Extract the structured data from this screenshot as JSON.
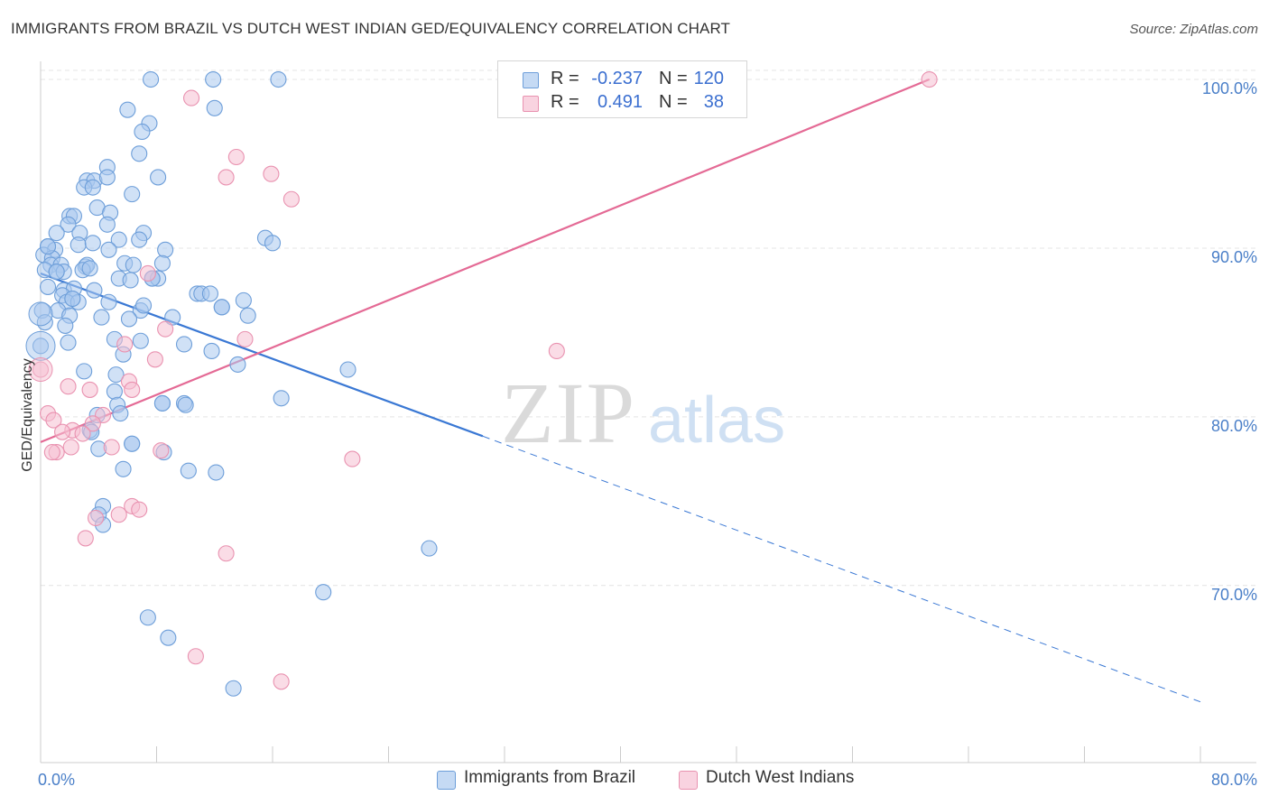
{
  "title": "IMMIGRANTS FROM BRAZIL VS DUTCH WEST INDIAN GED/EQUIVALENCY CORRELATION CHART",
  "source": "Source: ZipAtlas.com",
  "watermark": {
    "zip": "ZIP",
    "atlas": "atlas"
  },
  "colors": {
    "blue_fill": "#a9c8ee",
    "blue_stroke": "#6d9ed9",
    "blue_line": "#3a78d4",
    "pink_fill": "#f6bfd1",
    "pink_stroke": "#e992b0",
    "pink_line": "#e46a95",
    "grid": "#e4e4e4",
    "tick_label": "#4a7fc8"
  },
  "legend": [
    {
      "r_label": "R =",
      "r_value": "-0.237",
      "n_label": "N =",
      "n_value": "120"
    },
    {
      "r_label": "R =",
      "r_value": "0.491",
      "n_label": "N =",
      "n_value": "38"
    }
  ],
  "chart_data": {
    "type": "scatter",
    "title": "IMMIGRANTS FROM BRAZIL VS DUTCH WEST INDIAN GED/EQUIVALENCY CORRELATION CHART",
    "xlabel": "",
    "ylabel": "GED/Equivalency",
    "xlim": [
      0,
      80
    ],
    "ylim": [
      59.5,
      101.5
    ],
    "x_tick_labels": [
      "0.0%",
      "80.0%"
    ],
    "y_ticks": [
      70,
      80,
      90,
      100
    ],
    "y_tick_labels": [
      "70.0%",
      "80.0%",
      "90.0%",
      "100.0%"
    ],
    "legend_labels": [
      "Immigrants from Brazil",
      "Dutch West Indians"
    ],
    "series": [
      {
        "name": "Immigrants from Brazil",
        "color": "#a9c8ee",
        "trend": {
          "x": [
            0,
            30.5
          ],
          "y": [
            88.5,
            78.85
          ],
          "dash_to": [
            80,
            63.1
          ]
        },
        "points": [
          [
            7.6,
            100
          ],
          [
            11.9,
            100
          ],
          [
            16.4,
            100
          ],
          [
            6.0,
            98.2
          ],
          [
            12.0,
            98.3
          ],
          [
            7.5,
            97.4
          ],
          [
            7.0,
            96.9
          ],
          [
            6.8,
            95.6
          ],
          [
            4.6,
            94.8
          ],
          [
            8.1,
            94.2
          ],
          [
            3.2,
            94.0
          ],
          [
            3.7,
            94.0
          ],
          [
            4.6,
            94.2
          ],
          [
            3.0,
            93.6
          ],
          [
            3.6,
            93.6
          ],
          [
            6.3,
            93.2
          ],
          [
            3.9,
            92.4
          ],
          [
            4.8,
            92.1
          ],
          [
            2.0,
            91.9
          ],
          [
            2.3,
            91.9
          ],
          [
            1.9,
            91.4
          ],
          [
            4.6,
            91.4
          ],
          [
            1.1,
            90.9
          ],
          [
            2.7,
            90.9
          ],
          [
            7.1,
            90.9
          ],
          [
            5.4,
            90.5
          ],
          [
            6.8,
            90.5
          ],
          [
            15.5,
            90.6
          ],
          [
            16.0,
            90.3
          ],
          [
            0.5,
            90.1
          ],
          [
            1.0,
            89.9
          ],
          [
            2.6,
            90.2
          ],
          [
            3.6,
            90.3
          ],
          [
            4.7,
            89.9
          ],
          [
            8.6,
            89.9
          ],
          [
            0.2,
            89.6
          ],
          [
            0.8,
            89.4
          ],
          [
            0.7,
            89.0
          ],
          [
            1.4,
            89.0
          ],
          [
            3.1,
            88.9
          ],
          [
            3.2,
            89.0
          ],
          [
            5.8,
            89.1
          ],
          [
            6.4,
            89.0
          ],
          [
            8.4,
            89.1
          ],
          [
            0.3,
            88.7
          ],
          [
            1.1,
            88.6
          ],
          [
            1.6,
            88.6
          ],
          [
            2.9,
            88.7
          ],
          [
            3.4,
            88.8
          ],
          [
            5.4,
            88.2
          ],
          [
            6.2,
            88.1
          ],
          [
            7.7,
            88.2
          ],
          [
            8.1,
            88.2
          ],
          [
            0.5,
            87.7
          ],
          [
            1.6,
            87.5
          ],
          [
            2.3,
            87.6
          ],
          [
            3.7,
            87.5
          ],
          [
            10.8,
            87.3
          ],
          [
            11.1,
            87.3
          ],
          [
            11.7,
            87.3
          ],
          [
            1.5,
            87.2
          ],
          [
            2.2,
            87.0
          ],
          [
            1.8,
            86.8
          ],
          [
            2.6,
            86.8
          ],
          [
            4.7,
            86.8
          ],
          [
            14.0,
            86.9
          ],
          [
            0.1,
            86.3
          ],
          [
            1.2,
            86.3
          ],
          [
            2.0,
            86.0
          ],
          [
            6.9,
            86.3
          ],
          [
            7.1,
            86.6
          ],
          [
            12.5,
            86.5
          ],
          [
            14.3,
            86.0
          ],
          [
            4.2,
            85.9
          ],
          [
            6.1,
            85.8
          ],
          [
            9.1,
            85.9
          ],
          [
            0.3,
            85.6
          ],
          [
            1.7,
            85.4
          ],
          [
            5.1,
            84.6
          ],
          [
            6.9,
            84.5
          ],
          [
            1.9,
            84.4
          ],
          [
            9.9,
            84.3
          ],
          [
            0.0,
            84.2
          ],
          [
            5.7,
            83.7
          ],
          [
            11.8,
            83.9
          ],
          [
            13.6,
            83.1
          ],
          [
            21.2,
            82.8
          ],
          [
            3.0,
            82.7
          ],
          [
            5.2,
            82.5
          ],
          [
            5.1,
            81.5
          ],
          [
            16.6,
            81.1
          ],
          [
            8.4,
            80.8
          ],
          [
            9.9,
            80.8
          ],
          [
            10.0,
            80.7
          ],
          [
            5.3,
            80.7
          ],
          [
            5.5,
            80.2
          ],
          [
            3.9,
            80.1
          ],
          [
            3.4,
            79.2
          ],
          [
            3.5,
            79.1
          ],
          [
            6.3,
            78.4
          ],
          [
            4.0,
            78.1
          ],
          [
            8.5,
            77.9
          ],
          [
            5.7,
            76.9
          ],
          [
            10.2,
            76.8
          ],
          [
            12.1,
            76.7
          ],
          [
            26.8,
            72.2
          ],
          [
            4.3,
            74.7
          ],
          [
            4.0,
            74.2
          ],
          [
            4.3,
            73.6
          ],
          [
            19.5,
            69.6
          ],
          [
            7.4,
            68.1
          ],
          [
            8.8,
            66.9
          ],
          [
            13.3,
            63.9
          ],
          [
            6.3,
            78.4
          ],
          [
            8.4,
            80.8
          ],
          [
            2.2,
            87.0
          ],
          [
            0.5,
            90.1
          ],
          [
            1.1,
            88.6
          ],
          [
            7.7,
            88.2
          ],
          [
            12.5,
            86.5
          ]
        ]
      },
      {
        "name": "Dutch West Indians",
        "color": "#f6bfd1",
        "trend": {
          "x": [
            0,
            61.3
          ],
          "y": [
            78.5,
            100
          ]
        },
        "points": [
          [
            61.3,
            100
          ],
          [
            10.4,
            98.9
          ],
          [
            13.5,
            95.4
          ],
          [
            12.8,
            94.2
          ],
          [
            15.9,
            94.4
          ],
          [
            17.3,
            92.9
          ],
          [
            7.4,
            88.5
          ],
          [
            8.6,
            85.2
          ],
          [
            14.1,
            84.6
          ],
          [
            5.8,
            84.3
          ],
          [
            7.9,
            83.4
          ],
          [
            0.0,
            82.8
          ],
          [
            35.6,
            83.9
          ],
          [
            6.1,
            82.1
          ],
          [
            6.3,
            81.6
          ],
          [
            3.4,
            81.6
          ],
          [
            1.9,
            81.8
          ],
          [
            0.5,
            80.2
          ],
          [
            4.3,
            80.1
          ],
          [
            0.9,
            79.8
          ],
          [
            2.2,
            79.2
          ],
          [
            1.5,
            79.1
          ],
          [
            3.6,
            79.6
          ],
          [
            2.9,
            79.0
          ],
          [
            4.9,
            78.2
          ],
          [
            2.1,
            78.2
          ],
          [
            8.3,
            78.0
          ],
          [
            1.1,
            77.9
          ],
          [
            21.5,
            77.5
          ],
          [
            6.3,
            74.7
          ],
          [
            6.8,
            74.5
          ],
          [
            5.4,
            74.2
          ],
          [
            3.8,
            74.0
          ],
          [
            3.1,
            72.8
          ],
          [
            12.8,
            71.9
          ],
          [
            10.7,
            65.8
          ],
          [
            16.6,
            64.3
          ],
          [
            0.8,
            77.9
          ]
        ]
      }
    ]
  }
}
